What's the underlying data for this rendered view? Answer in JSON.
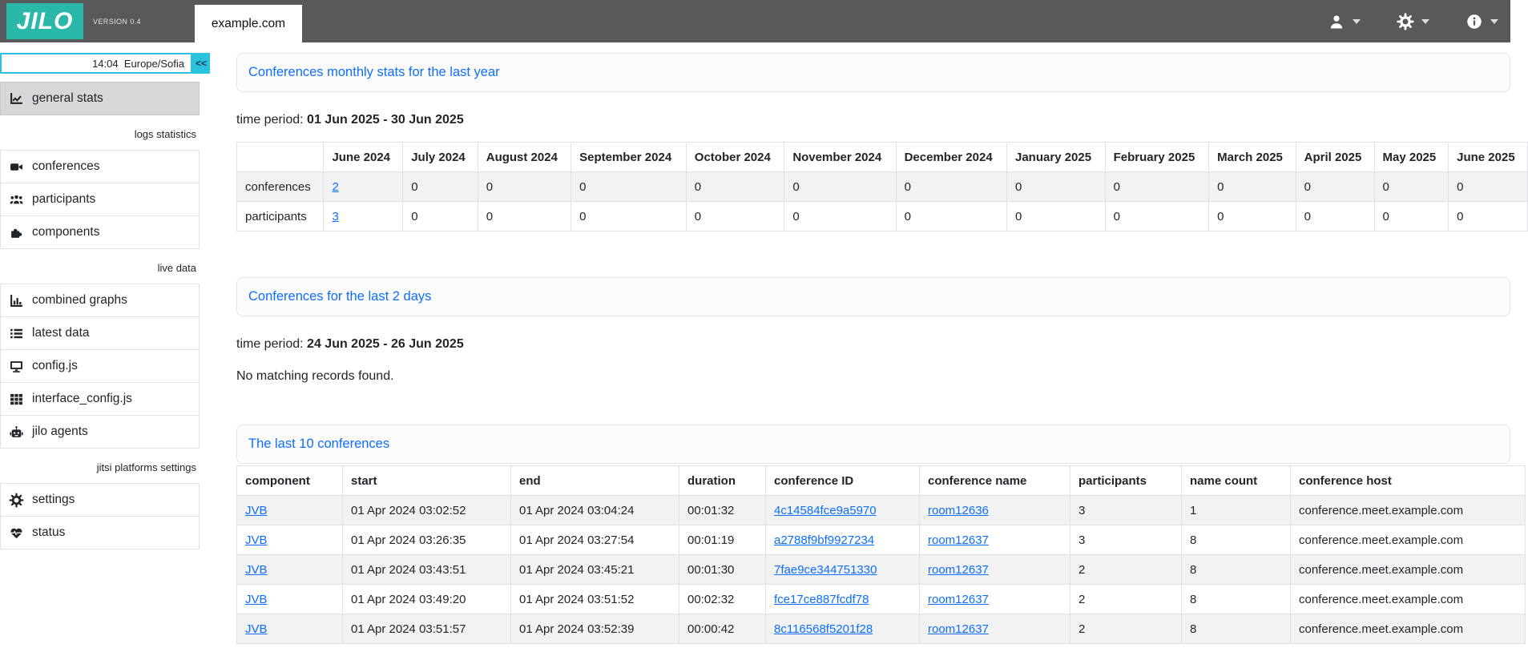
{
  "topbar": {
    "logo_text": "JILO",
    "version": "VERSION 0.4",
    "active_tab": "example.com",
    "menus": [
      {
        "name": "user-menu",
        "icon": "user-icon"
      },
      {
        "name": "settings-menu",
        "icon": "gear-icon"
      },
      {
        "name": "info-menu",
        "icon": "info-icon"
      }
    ]
  },
  "sidebar": {
    "clock": "14:04  Europe/Sofia",
    "collapse_label": "<<",
    "items": [
      {
        "type": "item",
        "icon": "chart-line-icon",
        "label": "general stats",
        "active": true
      },
      {
        "type": "section",
        "label": "logs statistics"
      },
      {
        "type": "item",
        "icon": "video-camera-icon",
        "label": "conferences"
      },
      {
        "type": "item",
        "icon": "users-icon",
        "label": "participants"
      },
      {
        "type": "item",
        "icon": "puzzle-piece-icon",
        "label": "components"
      },
      {
        "type": "section",
        "label": "live data"
      },
      {
        "type": "item",
        "icon": "bar-chart-icon",
        "label": "combined graphs"
      },
      {
        "type": "item",
        "icon": "list-icon",
        "label": "latest data"
      },
      {
        "type": "item",
        "icon": "monitor-icon",
        "label": "config.js"
      },
      {
        "type": "item",
        "icon": "grid-icon",
        "label": "interface_config.js"
      },
      {
        "type": "item",
        "icon": "robot-icon",
        "label": "jilo agents"
      },
      {
        "type": "section",
        "label": "jitsi platforms settings"
      },
      {
        "type": "item",
        "icon": "gear-icon",
        "label": "settings"
      },
      {
        "type": "item",
        "icon": "heart-pulse-icon",
        "label": "status"
      }
    ]
  },
  "monthly_stats": {
    "title": "Conferences monthly stats for the last year",
    "time_period_label": "time period:",
    "time_period": "01 Jun 2025 - 30 Jun 2025",
    "columns": [
      "",
      "June 2024",
      "July 2024",
      "August 2024",
      "September 2024",
      "October 2024",
      "November 2024",
      "December 2024",
      "January 2025",
      "February 2025",
      "March 2025",
      "April 2025",
      "May 2025",
      "June 2025"
    ],
    "rows": [
      {
        "label": "conferences",
        "first_is_link": true,
        "values": [
          "2",
          "0",
          "0",
          "0",
          "0",
          "0",
          "0",
          "0",
          "0",
          "0",
          "0",
          "0",
          "0"
        ]
      },
      {
        "label": "participants",
        "first_is_link": true,
        "values": [
          "3",
          "0",
          "0",
          "0",
          "0",
          "0",
          "0",
          "0",
          "0",
          "0",
          "0",
          "0",
          "0"
        ]
      }
    ]
  },
  "last_2_days": {
    "title": "Conferences for the last 2 days",
    "time_period_label": "time period:",
    "time_period": "24 Jun 2025 - 26 Jun 2025",
    "empty_message": "No matching records found."
  },
  "last_10": {
    "title": "The last 10 conferences",
    "columns": [
      "component",
      "start",
      "end",
      "duration",
      "conference ID",
      "conference name",
      "participants",
      "name count",
      "conference host"
    ],
    "link_columns": [
      0,
      4,
      5
    ],
    "rows": [
      [
        "JVB",
        "01 Apr 2024 03:02:52",
        "01 Apr 2024 03:04:24",
        "00:01:32",
        "4c14584fce9a5970",
        "room12636",
        "3",
        "1",
        "conference.meet.example.com"
      ],
      [
        "JVB",
        "01 Apr 2024 03:26:35",
        "01 Apr 2024 03:27:54",
        "00:01:19",
        "a2788f9bf9927234",
        "room12637",
        "3",
        "8",
        "conference.meet.example.com"
      ],
      [
        "JVB",
        "01 Apr 2024 03:43:51",
        "01 Apr 2024 03:45:21",
        "00:01:30",
        "7fae9ce344751330",
        "room12637",
        "2",
        "8",
        "conference.meet.example.com"
      ],
      [
        "JVB",
        "01 Apr 2024 03:49:20",
        "01 Apr 2024 03:51:52",
        "00:02:32",
        "fce17ce887fcdf78",
        "room12637",
        "2",
        "8",
        "conference.meet.example.com"
      ],
      [
        "JVB",
        "01 Apr 2024 03:51:57",
        "01 Apr 2024 03:52:39",
        "00:00:42",
        "8c116568f5201f28",
        "room12637",
        "2",
        "8",
        "conference.meet.example.com"
      ]
    ]
  },
  "colors": {
    "topbar_gray": "#59595b",
    "logo_teal": "#2ab9a9",
    "accent_cyan": "#29c3dd",
    "link_blue": "#0d6efd"
  }
}
